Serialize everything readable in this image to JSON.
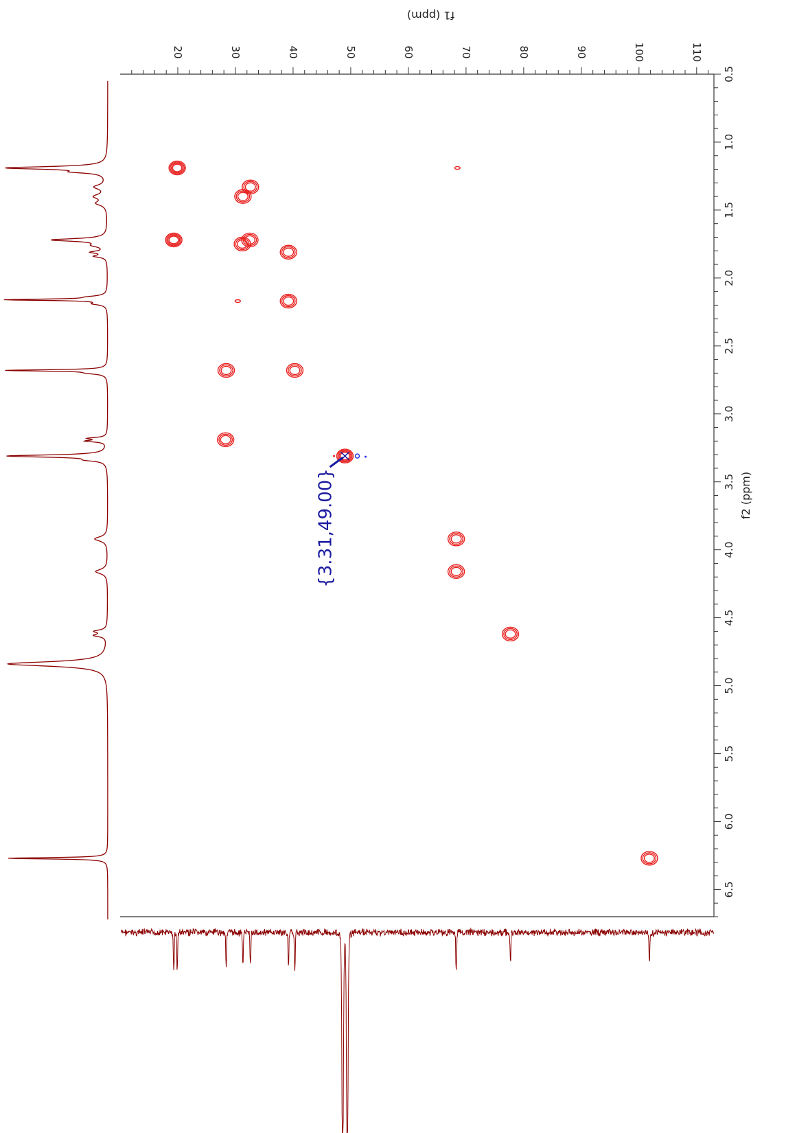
{
  "chart_data": {
    "type": "heatmap",
    "xlabel": "f2 (ppm)",
    "ylabel": "f1 (ppm)",
    "f2_axis": {
      "range": [
        0.5,
        6.7
      ],
      "reversed": false,
      "ticks": [
        0.5,
        1.0,
        1.5,
        2.0,
        2.5,
        3.0,
        3.5,
        4.0,
        4.5,
        5.0,
        5.5,
        6.0,
        6.5
      ],
      "tick_labels": [
        "0.5",
        "1.0",
        "1.5",
        "2.0",
        "2.5",
        "3.0",
        "3.5",
        "4.0",
        "4.5",
        "5.0",
        "5.5",
        "6.0",
        "6.5"
      ]
    },
    "f1_axis": {
      "range": [
        10,
        113
      ],
      "ticks": [
        20,
        30,
        40,
        50,
        60,
        70,
        80,
        90,
        100,
        110
      ],
      "tick_labels": [
        "20",
        "30",
        "40",
        "50",
        "60",
        "70",
        "80",
        "90",
        "100",
        "110"
      ]
    },
    "contour_color": "#e8211f",
    "negative_contour_color": "#2a35e0",
    "spectrum_color": "#8b0000",
    "annotation_color": "#1a1aa0",
    "peaks": [
      {
        "f2": 1.19,
        "f1": 19.9,
        "levels": 4
      },
      {
        "f2": 1.33,
        "f1": 32.6,
        "levels": 3
      },
      {
        "f2": 1.4,
        "f1": 31.3,
        "levels": 3
      },
      {
        "f2": 1.72,
        "f1": 19.3,
        "levels": 4
      },
      {
        "f2": 1.72,
        "f1": 32.5,
        "levels": 3
      },
      {
        "f2": 1.75,
        "f1": 31.2,
        "levels": 3
      },
      {
        "f2": 1.81,
        "f1": 39.2,
        "levels": 3
      },
      {
        "f2": 2.17,
        "f1": 30.4,
        "levels": 1
      },
      {
        "f2": 2.17,
        "f1": 39.2,
        "levels": 3
      },
      {
        "f2": 2.68,
        "f1": 28.4,
        "levels": 3
      },
      {
        "f2": 2.68,
        "f1": 40.3,
        "levels": 3
      },
      {
        "f2": 3.19,
        "f1": 28.3,
        "levels": 3
      },
      {
        "f2": 3.31,
        "f1": 49.0,
        "levels": 4
      },
      {
        "f2": 3.92,
        "f1": 68.3,
        "levels": 3
      },
      {
        "f2": 4.16,
        "f1": 68.3,
        "levels": 3
      },
      {
        "f2": 4.62,
        "f1": 77.7,
        "levels": 3
      },
      {
        "f2": 6.27,
        "f1": 101.8,
        "levels": 3
      },
      {
        "f2": 1.19,
        "f1": 68.5,
        "levels": 1
      }
    ],
    "proton_peaks": [
      {
        "ppm": 1.19,
        "height": 1.0,
        "width": 0.012
      },
      {
        "ppm": 1.22,
        "height": 0.25,
        "width": 0.01
      },
      {
        "ppm": 1.33,
        "height": 0.12,
        "width": 0.02
      },
      {
        "ppm": 1.4,
        "height": 0.12,
        "width": 0.02
      },
      {
        "ppm": 1.45,
        "height": 0.1,
        "width": 0.02
      },
      {
        "ppm": 1.72,
        "height": 0.55,
        "width": 0.012
      },
      {
        "ppm": 1.76,
        "height": 0.12,
        "width": 0.015
      },
      {
        "ppm": 1.81,
        "height": 0.15,
        "width": 0.01
      },
      {
        "ppm": 1.84,
        "height": 0.12,
        "width": 0.01
      },
      {
        "ppm": 2.16,
        "height": 1.0,
        "width": 0.006
      },
      {
        "ppm": 2.14,
        "height": 0.15,
        "width": 0.01
      },
      {
        "ppm": 2.19,
        "height": 0.12,
        "width": 0.01
      },
      {
        "ppm": 2.68,
        "height": 1.0,
        "width": 0.006
      },
      {
        "ppm": 2.7,
        "height": 0.15,
        "width": 0.01
      },
      {
        "ppm": 3.18,
        "height": 0.18,
        "width": 0.008
      },
      {
        "ppm": 3.2,
        "height": 0.2,
        "width": 0.008
      },
      {
        "ppm": 3.31,
        "height": 1.0,
        "width": 0.01
      },
      {
        "ppm": 3.34,
        "height": 0.15,
        "width": 0.01
      },
      {
        "ppm": 3.92,
        "height": 0.13,
        "width": 0.02
      },
      {
        "ppm": 4.16,
        "height": 0.12,
        "width": 0.02
      },
      {
        "ppm": 4.6,
        "height": 0.12,
        "width": 0.012
      },
      {
        "ppm": 4.63,
        "height": 0.12,
        "width": 0.012
      },
      {
        "ppm": 4.84,
        "height": 1.0,
        "width": 0.02
      },
      {
        "ppm": 6.27,
        "height": 1.0,
        "width": 0.006
      }
    ],
    "carbon_peaks": [
      {
        "ppm": 19.3,
        "depth": 0.22
      },
      {
        "ppm": 19.9,
        "depth": 0.2
      },
      {
        "ppm": 28.4,
        "depth": 0.18
      },
      {
        "ppm": 31.3,
        "depth": 0.17
      },
      {
        "ppm": 32.6,
        "depth": 0.18
      },
      {
        "ppm": 39.2,
        "depth": 0.18
      },
      {
        "ppm": 40.3,
        "depth": 0.2
      },
      {
        "ppm": 48.6,
        "depth": 1.0
      },
      {
        "ppm": 49.4,
        "depth": 1.0
      },
      {
        "ppm": 68.3,
        "depth": 0.22
      },
      {
        "ppm": 77.7,
        "depth": 0.16
      },
      {
        "ppm": 101.8,
        "depth": 0.16
      }
    ],
    "annotations": [
      {
        "text": "{3.31,49.00}",
        "f2": 3.31,
        "f1": 49.0
      }
    ]
  }
}
